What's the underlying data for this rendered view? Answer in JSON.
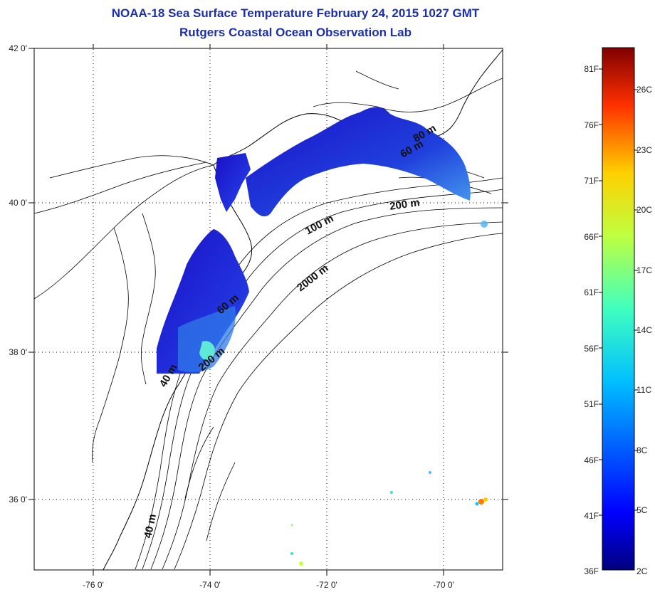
{
  "header": {
    "title": "NOAA-18 Sea Surface Temperature February 24, 2015 1027 GMT",
    "subtitle": "Rutgers Coastal Ocean Observation Lab"
  },
  "axes": {
    "lon_ticks": [
      "-76 0'",
      "-74 0'",
      "-72 0'",
      "-70 0'"
    ],
    "lat_ticks": [
      "42 0'",
      "40 0'",
      "38 0'",
      "36 0'"
    ]
  },
  "isobaths": [
    "80 m",
    "60 m",
    "200 m",
    "100 m",
    "2000 m",
    "60 m",
    "200 m",
    "40 m",
    "40 m"
  ],
  "colorbar": {
    "fahrenheit": [
      "81F",
      "76F",
      "71F",
      "66F",
      "61F",
      "56F",
      "51F",
      "46F",
      "41F",
      "36F"
    ],
    "celsius": [
      "26C",
      "23C",
      "20C",
      "17C",
      "14C",
      "11C",
      "8C",
      "5C",
      "2C"
    ]
  },
  "colors": {
    "title": "#1c2fa8",
    "sst_cold": "#1a12c8",
    "sst_mid": "#2a6ae6",
    "sst_warm": "#ff7a00"
  }
}
